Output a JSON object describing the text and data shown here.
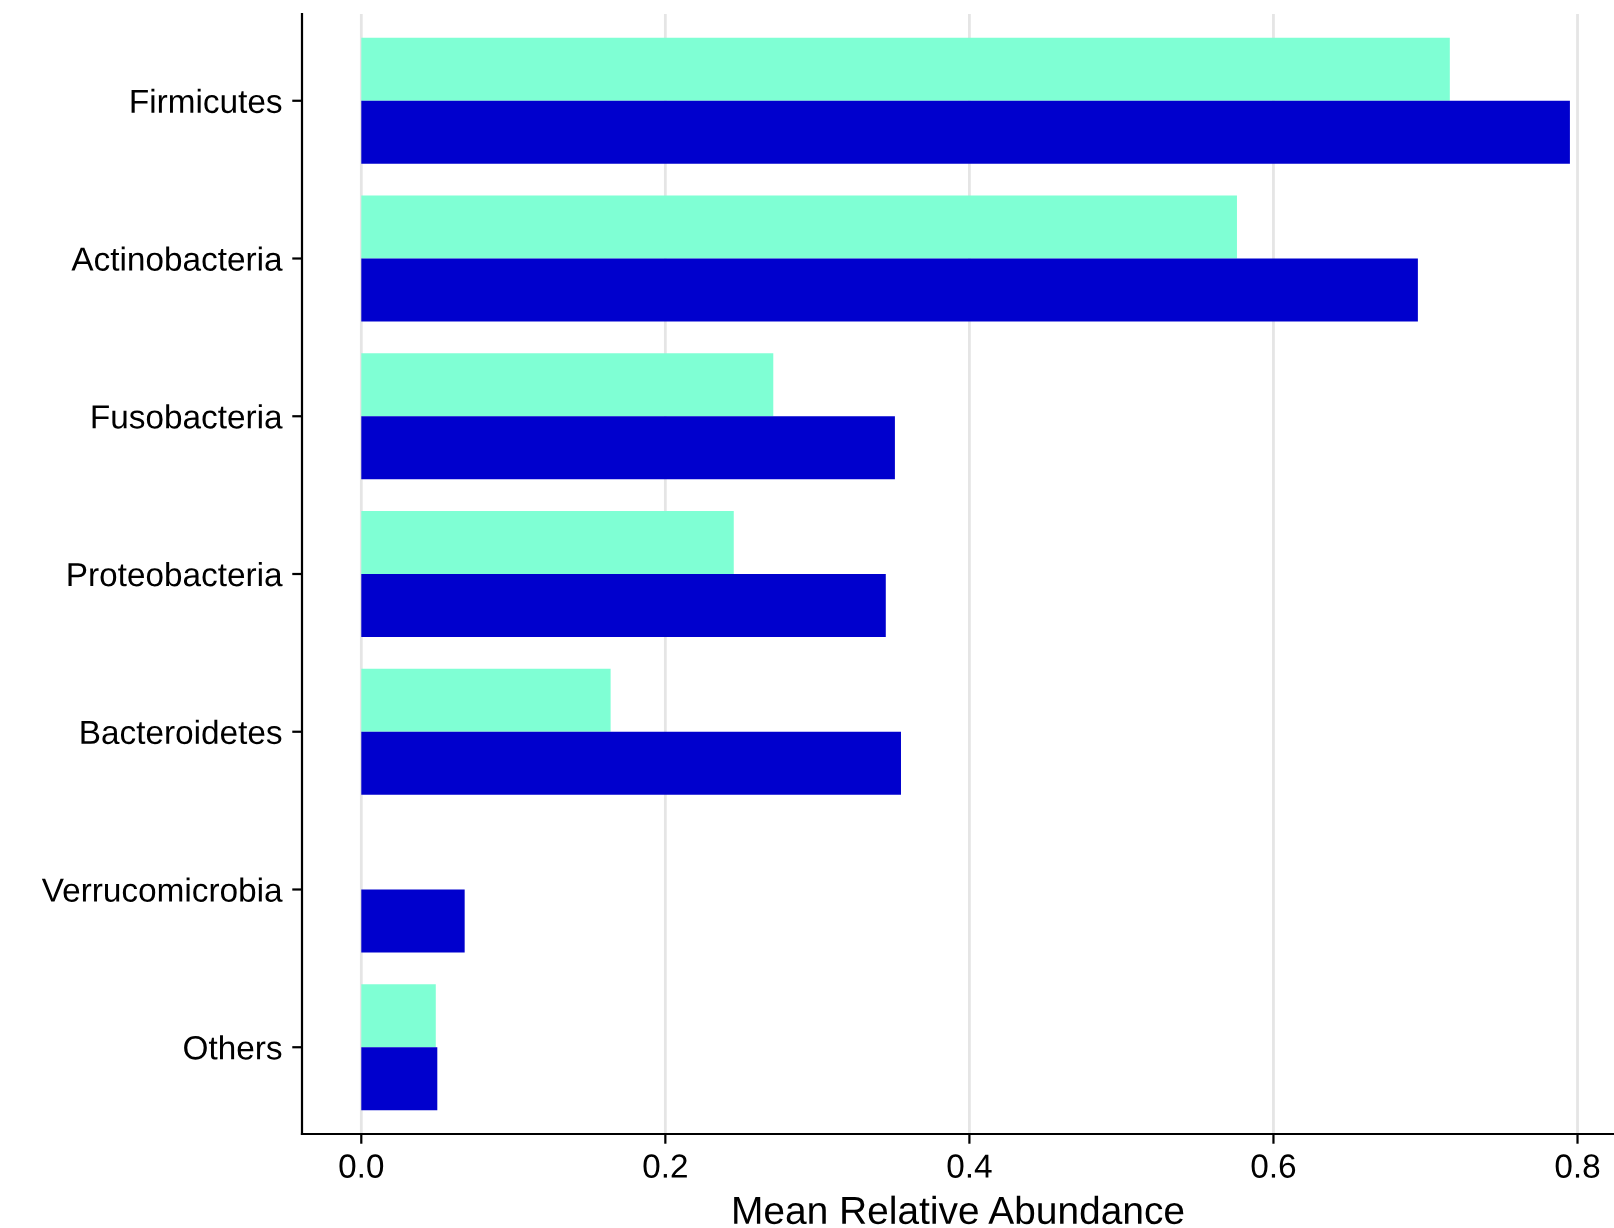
{
  "chart_data": {
    "type": "bar",
    "orientation": "horizontal",
    "xlabel": "Mean Relative Abundance",
    "categories": [
      "Firmicutes",
      "Actinobacteria",
      "Fusobacteria",
      "Proteobacteria",
      "Bacteroidetes",
      "Verrucomicrobia",
      "Others"
    ],
    "series": [
      {
        "color": "#7fffd4",
        "values": [
          0.716,
          0.576,
          0.271,
          0.245,
          0.164,
          null,
          0.049
        ]
      },
      {
        "color": "#0000cd",
        "values": [
          0.795,
          0.695,
          0.351,
          0.345,
          0.355,
          0.068,
          0.05
        ]
      }
    ],
    "xlim": [
      -0.039,
      0.824
    ],
    "xticks": [
      {
        "value": 0,
        "label": "0.0"
      },
      0.2,
      0.4,
      0.6,
      0.8
    ],
    "grid": "x",
    "legend": false
  }
}
